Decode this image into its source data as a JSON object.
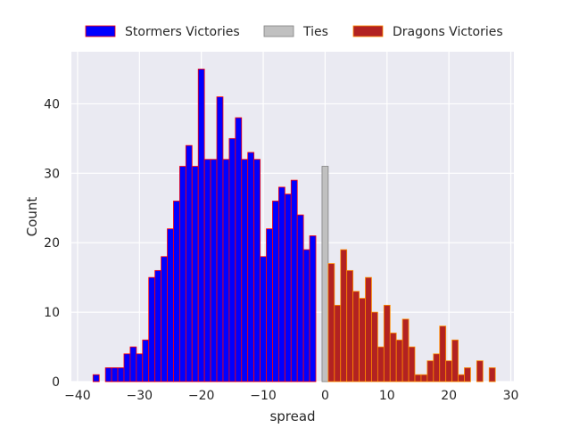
{
  "chart_data": {
    "type": "bar",
    "xlabel": "spread",
    "ylabel": "Count",
    "xlim": [
      -41,
      30.5
    ],
    "ylim": [
      0,
      47.5
    ],
    "xticks": [
      -40,
      -30,
      -20,
      -10,
      0,
      10,
      20,
      30
    ],
    "yticks": [
      0,
      10,
      20,
      30,
      40
    ],
    "grid": true,
    "legend_placement": "top-center",
    "bin_width": 1,
    "series": [
      {
        "name": "Stormers Victories",
        "color": "#0000ff",
        "edge_color": "#ff0000",
        "x": [
          -37,
          -35,
          -34,
          -33,
          -32,
          -31,
          -30,
          -29,
          -28,
          -27,
          -26,
          -25,
          -24,
          -23,
          -22,
          -21,
          -20,
          -19,
          -18,
          -17,
          -16,
          -15,
          -14,
          -13,
          -12,
          -11,
          -10,
          -9,
          -8,
          -7,
          -6,
          -5,
          -4,
          -3,
          -2,
          -1
        ],
        "values": [
          1,
          2,
          2,
          2,
          4,
          5,
          4,
          6,
          15,
          16,
          18,
          22,
          26,
          31,
          34,
          31,
          45,
          32,
          32,
          41,
          32,
          35,
          38,
          32,
          33,
          32,
          18,
          22,
          26,
          28,
          27,
          29,
          24,
          19,
          21,
          0
        ]
      },
      {
        "name": "Ties",
        "color": "#c0c0c0",
        "edge_color": "#808080",
        "x": [
          0
        ],
        "values": [
          31
        ]
      },
      {
        "name": "Dragons Victories",
        "color": "#b22222",
        "edge_color": "#ff8c00",
        "x": [
          1,
          2,
          3,
          4,
          5,
          6,
          7,
          8,
          9,
          10,
          11,
          12,
          13,
          14,
          15,
          16,
          17,
          18,
          19,
          20,
          21,
          22,
          23,
          24,
          25,
          26,
          27
        ],
        "values": [
          17,
          11,
          19,
          16,
          13,
          12,
          15,
          10,
          5,
          11,
          7,
          6,
          9,
          5,
          1,
          1,
          3,
          4,
          8,
          3,
          6,
          1,
          2,
          0,
          3,
          0,
          2
        ]
      }
    ]
  }
}
